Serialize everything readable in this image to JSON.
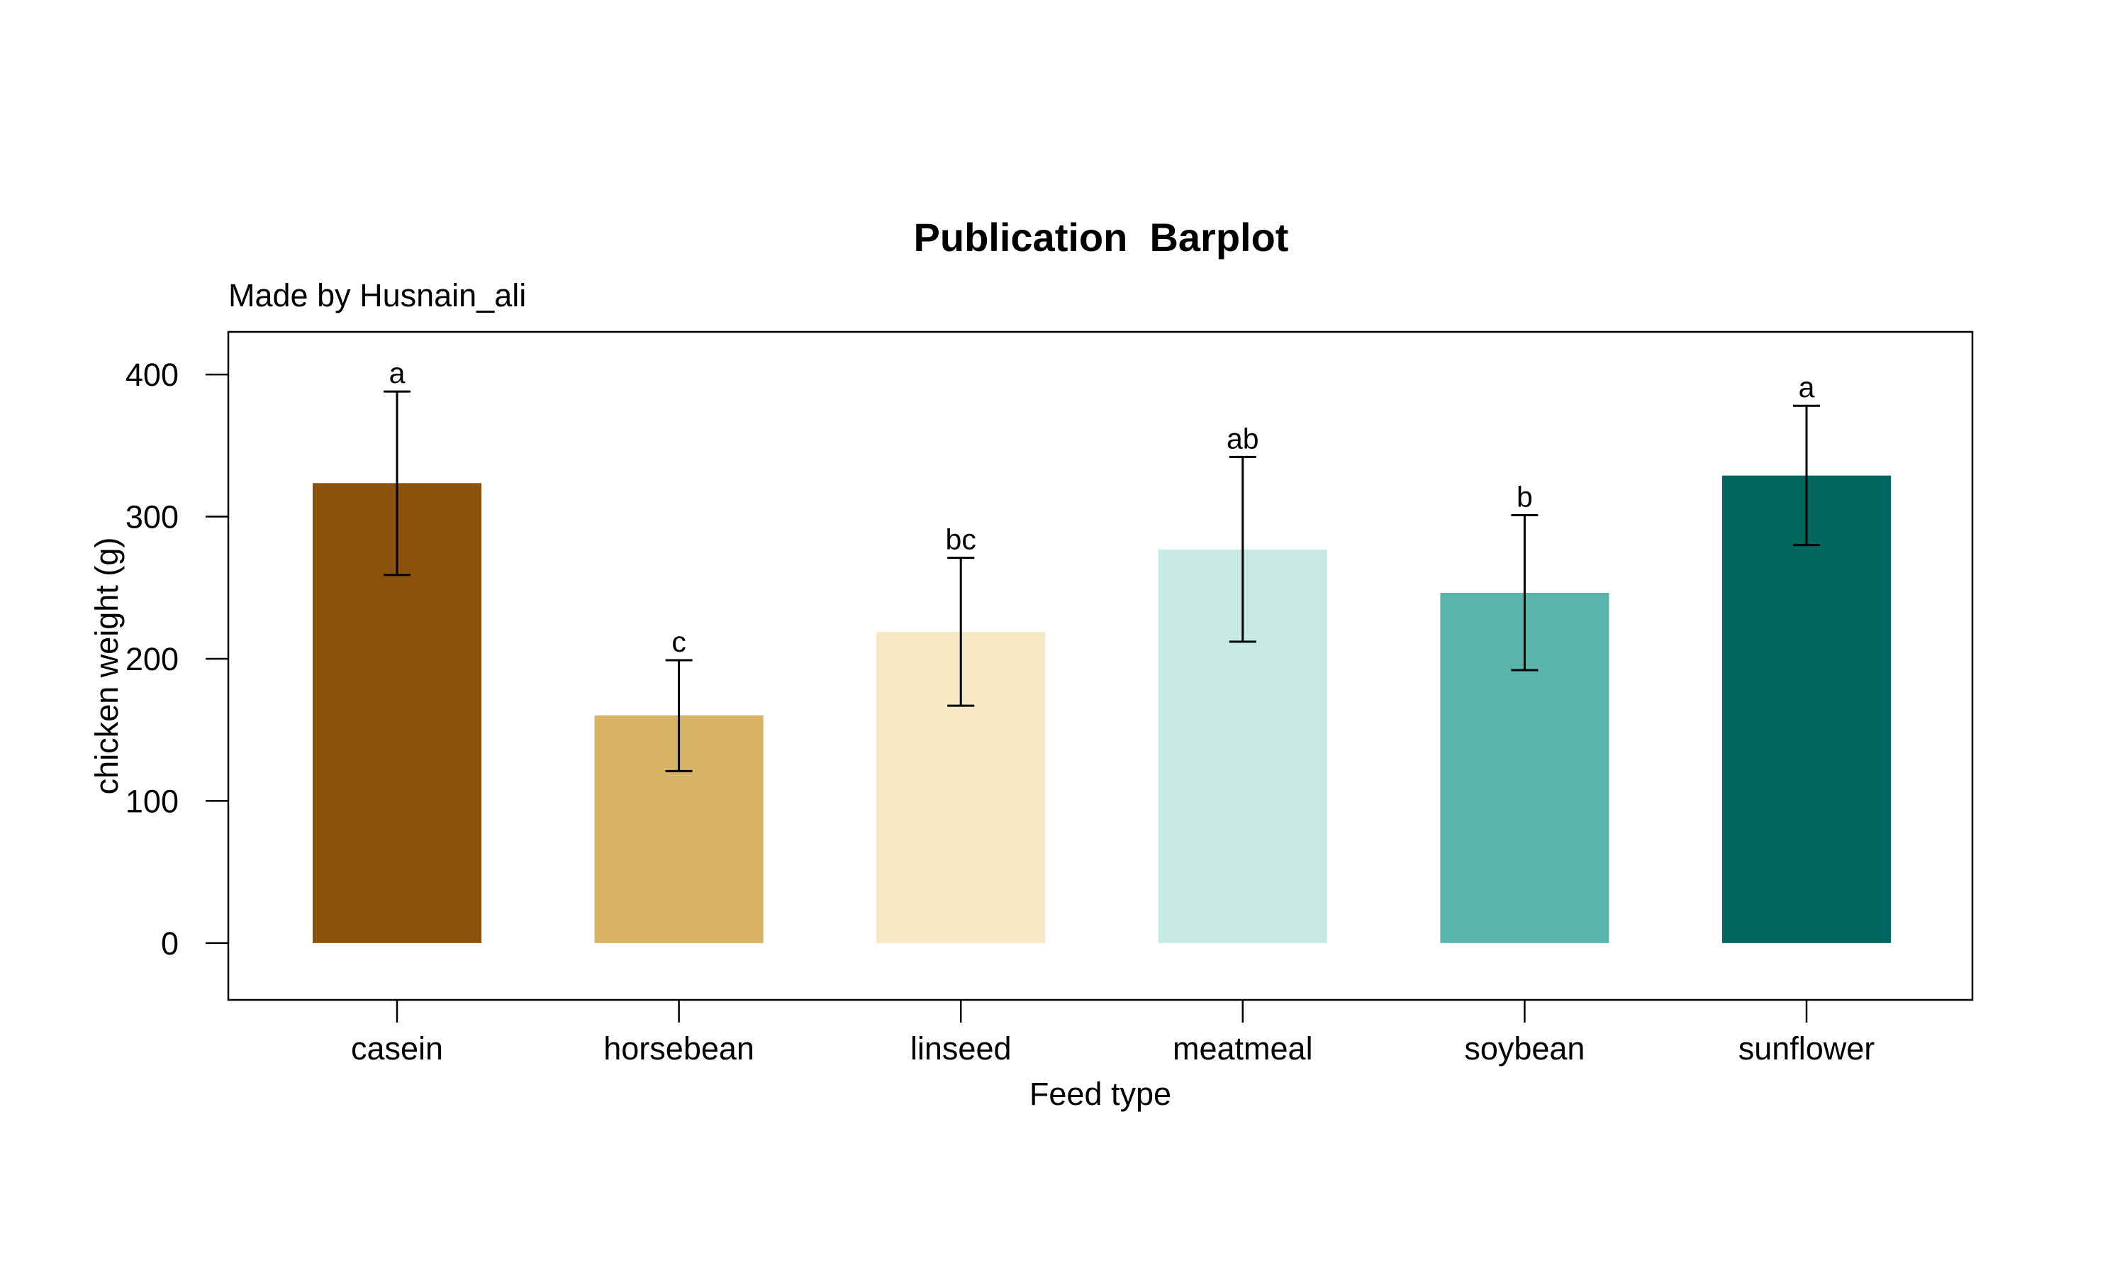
{
  "chart_data": {
    "type": "bar",
    "title": "Publication  Barplot",
    "subtitle": "Made by Husnain_ali",
    "xlabel": "Feed type",
    "ylabel": "chicken weight (g)",
    "ylim": [
      -40,
      430
    ],
    "yticks": [
      0,
      100,
      200,
      300,
      400
    ],
    "grid": false,
    "categories": [
      "casein",
      "horsebean",
      "linseed",
      "meatmeal",
      "soybean",
      "sunflower"
    ],
    "values": [
      323.6,
      160.2,
      218.8,
      276.9,
      246.4,
      328.9
    ],
    "error_low": [
      259,
      121,
      167,
      212,
      192,
      280
    ],
    "error_high": [
      388,
      199,
      271,
      342,
      301,
      378
    ],
    "letters": [
      "a",
      "c",
      "bc",
      "ab",
      "b",
      "a"
    ],
    "colors": [
      "#8C510A",
      "#D8B365",
      "#F6E8C3",
      "#C7EAE5",
      "#5AB4AC",
      "#01665E"
    ]
  }
}
